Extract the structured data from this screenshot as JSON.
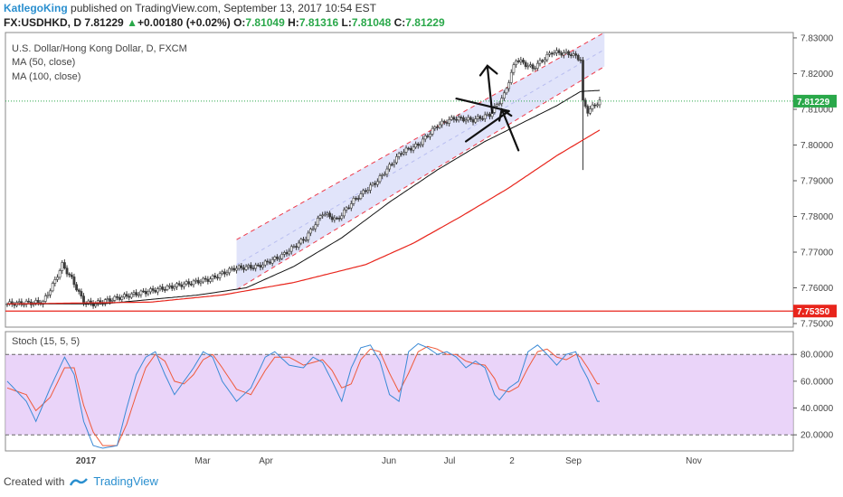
{
  "header": {
    "author": "KatlegoKing",
    "published_text": "published on TradingView.com, September 13, 2017 10:54 EST",
    "symbol": "FX:USDHKD, D",
    "last": "7.81229",
    "change_arrow": "▲",
    "change": "+0.00180 (+0.02%)",
    "o_label": "O:",
    "o": "7.81049",
    "h_label": "H:",
    "h": "7.81316",
    "l_label": "L:",
    "l": "7.81048",
    "c_label": "C:",
    "c": "7.81229"
  },
  "footer": {
    "created_with": "Created with",
    "brand": "TradingView",
    "logo_icon": "tradingview-logo-icon"
  },
  "colors": {
    "up": "#2aa84a",
    "down": "#e04040",
    "candle": "#3c3c3c",
    "ma50": "#111111",
    "ma100": "#e8251c",
    "channel_fill": "#c9cdf5",
    "channel_line": "#ee3a4a",
    "support": "#e8251c",
    "price_tag": "#2aa84a",
    "stoch_fill": "#e3c6f7",
    "stoch_k": "#3a8ad6",
    "stoch_d": "#ef5a3a",
    "pane_border": "#444444"
  },
  "chart_data": [
    {
      "type": "candlestick",
      "title": "U.S. Dollar/Hong Kong Dollar, D, FXCM",
      "legend": [
        "MA (50, close)",
        "MA (100, close)"
      ],
      "x_ticks": [
        "2017",
        "Mar",
        "Apr",
        "Jun",
        "Jul",
        "2",
        "Sep",
        "Nov"
      ],
      "y_ticks": [
        "7.83000",
        "7.82000",
        "7.81000",
        "7.80000",
        "7.79000",
        "7.78000",
        "7.77000",
        "7.76000",
        "7.75000"
      ],
      "ylim": [
        7.749,
        7.8315
      ],
      "last_price_label": "7.81229",
      "support_label": "7.75350",
      "support_level": 7.7535,
      "close_keypoints": [
        [
          0,
          7.7555
        ],
        [
          15,
          7.756
        ],
        [
          20,
          7.762
        ],
        [
          23,
          7.7665
        ],
        [
          27,
          7.7625
        ],
        [
          32,
          7.756
        ],
        [
          36,
          7.7555
        ],
        [
          45,
          7.757
        ],
        [
          55,
          7.7585
        ],
        [
          70,
          7.7605
        ],
        [
          85,
          7.7625
        ],
        [
          95,
          7.7655
        ],
        [
          105,
          7.766
        ],
        [
          115,
          7.769
        ],
        [
          125,
          7.774
        ],
        [
          132,
          7.781
        ],
        [
          138,
          7.779
        ],
        [
          145,
          7.7845
        ],
        [
          155,
          7.79
        ],
        [
          165,
          7.798
        ],
        [
          172,
          7.8
        ],
        [
          180,
          7.8055
        ],
        [
          187,
          7.8075
        ],
        [
          195,
          7.807
        ],
        [
          202,
          7.8085
        ],
        [
          208,
          7.814
        ],
        [
          213,
          7.824
        ],
        [
          220,
          7.8215
        ],
        [
          228,
          7.826
        ],
        [
          236,
          7.8255
        ],
        [
          240,
          7.824
        ],
        [
          241,
          7.812
        ],
        [
          243,
          7.8095
        ],
        [
          247,
          7.8118
        ],
        [
          248,
          7.81229
        ]
      ],
      "ma50_keypoints": [
        [
          0,
          7.7555
        ],
        [
          40,
          7.7555
        ],
        [
          80,
          7.758
        ],
        [
          100,
          7.76
        ],
        [
          120,
          7.766
        ],
        [
          140,
          7.774
        ],
        [
          160,
          7.784
        ],
        [
          180,
          7.793
        ],
        [
          200,
          7.801
        ],
        [
          215,
          7.806
        ],
        [
          230,
          7.811
        ],
        [
          240,
          7.815
        ],
        [
          248,
          7.8153
        ]
      ],
      "ma100_keypoints": [
        [
          0,
          7.7555
        ],
        [
          60,
          7.756
        ],
        [
          90,
          7.758
        ],
        [
          120,
          7.7615
        ],
        [
          150,
          7.7665
        ],
        [
          170,
          7.7725
        ],
        [
          190,
          7.78
        ],
        [
          210,
          7.788
        ],
        [
          230,
          7.797
        ],
        [
          240,
          7.801
        ],
        [
          248,
          7.8042
        ]
      ],
      "channel": {
        "start_index": 96,
        "end_index": 250,
        "upper": [
          7.7735,
          7.8315
        ],
        "lower": [
          7.7595,
          7.822
        ]
      },
      "annotations": "hand-drawn arrows and triangle near Jul–Aug"
    },
    {
      "type": "line",
      "title": "Stoch (15, 5, 5)",
      "y_ticks": [
        "80.0000",
        "60.0000",
        "40.0000",
        "20.0000"
      ],
      "ylim": [
        8,
        97
      ],
      "bands": [
        20,
        80
      ],
      "series": [
        {
          "role": "%K",
          "keypoints": [
            [
              0,
              60
            ],
            [
              8,
              45
            ],
            [
              12,
              30
            ],
            [
              18,
              55
            ],
            [
              24,
              78
            ],
            [
              28,
              65
            ],
            [
              32,
              30
            ],
            [
              36,
              12
            ],
            [
              40,
              10
            ],
            [
              46,
              12
            ],
            [
              50,
              40
            ],
            [
              54,
              65
            ],
            [
              58,
              78
            ],
            [
              62,
              82
            ],
            [
              66,
              65
            ],
            [
              70,
              50
            ],
            [
              74,
              60
            ],
            [
              78,
              70
            ],
            [
              82,
              82
            ],
            [
              86,
              78
            ],
            [
              90,
              60
            ],
            [
              96,
              45
            ],
            [
              102,
              55
            ],
            [
              108,
              78
            ],
            [
              112,
              82
            ],
            [
              118,
              72
            ],
            [
              124,
              70
            ],
            [
              128,
              78
            ],
            [
              132,
              74
            ],
            [
              136,
              60
            ],
            [
              140,
              45
            ],
            [
              144,
              70
            ],
            [
              148,
              85
            ],
            [
              152,
              87
            ],
            [
              156,
              75
            ],
            [
              160,
              50
            ],
            [
              164,
              45
            ],
            [
              168,
              82
            ],
            [
              172,
              88
            ],
            [
              176,
              85
            ],
            [
              180,
              80
            ],
            [
              184,
              82
            ],
            [
              188,
              78
            ],
            [
              192,
              70
            ],
            [
              196,
              75
            ],
            [
              200,
              70
            ],
            [
              204,
              50
            ],
            [
              206,
              46
            ],
            [
              210,
              55
            ],
            [
              214,
              60
            ],
            [
              218,
              82
            ],
            [
              222,
              87
            ],
            [
              226,
              80
            ],
            [
              230,
              72
            ],
            [
              234,
              80
            ],
            [
              238,
              82
            ],
            [
              240,
              72
            ],
            [
              243,
              62
            ],
            [
              247,
              45
            ]
          ]
        },
        {
          "role": "%D",
          "keypoints": [
            [
              0,
              55
            ],
            [
              8,
              50
            ],
            [
              12,
              38
            ],
            [
              18,
              48
            ],
            [
              24,
              70
            ],
            [
              28,
              70
            ],
            [
              32,
              42
            ],
            [
              36,
              22
            ],
            [
              40,
              12
            ],
            [
              46,
              12
            ],
            [
              50,
              28
            ],
            [
              54,
              50
            ],
            [
              58,
              70
            ],
            [
              62,
              80
            ],
            [
              66,
              75
            ],
            [
              70,
              60
            ],
            [
              74,
              58
            ],
            [
              78,
              65
            ],
            [
              82,
              76
            ],
            [
              86,
              80
            ],
            [
              90,
              70
            ],
            [
              96,
              54
            ],
            [
              102,
              50
            ],
            [
              108,
              68
            ],
            [
              112,
              78
            ],
            [
              118,
              78
            ],
            [
              124,
              72
            ],
            [
              128,
              74
            ],
            [
              132,
              76
            ],
            [
              136,
              68
            ],
            [
              140,
              55
            ],
            [
              144,
              58
            ],
            [
              148,
              76
            ],
            [
              152,
              84
            ],
            [
              156,
              82
            ],
            [
              160,
              66
            ],
            [
              164,
              52
            ],
            [
              168,
              66
            ],
            [
              172,
              82
            ],
            [
              176,
              86
            ],
            [
              180,
              84
            ],
            [
              184,
              80
            ],
            [
              188,
              80
            ],
            [
              192,
              75
            ],
            [
              196,
              73
            ],
            [
              200,
              72
            ],
            [
              204,
              62
            ],
            [
              206,
              54
            ],
            [
              210,
              52
            ],
            [
              214,
              56
            ],
            [
              218,
              70
            ],
            [
              222,
              82
            ],
            [
              226,
              84
            ],
            [
              230,
              78
            ],
            [
              234,
              76
            ],
            [
              238,
              80
            ],
            [
              240,
              78
            ],
            [
              243,
              70
            ],
            [
              247,
              58
            ]
          ]
        }
      ]
    }
  ]
}
